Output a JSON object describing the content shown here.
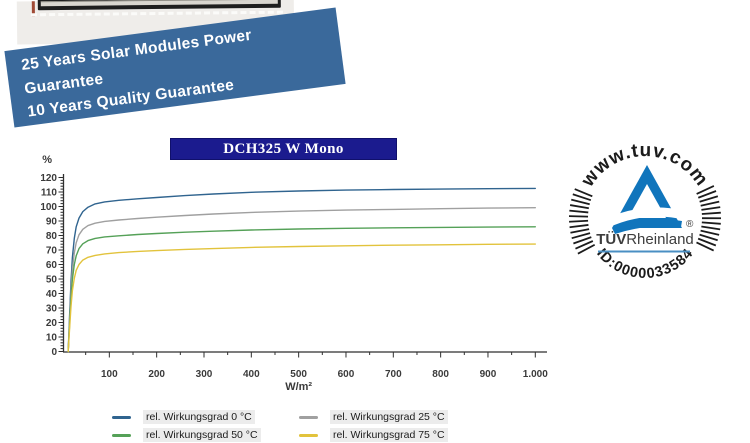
{
  "banner": {
    "line1": "25 Years Solar Modules Power",
    "line2": "Guarantee",
    "line3": "10 Years Quality Guarantee",
    "bg_color": "#3a699b"
  },
  "title": "DCH325 W Mono",
  "title_bg_color": "#1b1b8e",
  "tuv_badge": {
    "top_text": "www.tuv.com",
    "brand_bold": "TÜV",
    "brand_regular": "Rheinland",
    "registered": "®",
    "id_text": "ID:0000033584",
    "triangle_color": "#1075bc",
    "underline_color": "#4a8fc3"
  },
  "chart_data": {
    "type": "line",
    "title": "DCH325 W Mono",
    "xlabel": "W/m²",
    "ylabel": "%",
    "xlim": [
      0,
      1040
    ],
    "ylim": [
      0,
      120
    ],
    "grid": false,
    "legend_position": "bottom",
    "x_major_ticks": [
      100,
      200,
      300,
      400,
      500,
      600,
      700,
      800,
      900,
      1000
    ],
    "x_tick_labels": [
      "100",
      "200",
      "300",
      "400",
      "500",
      "600",
      "700",
      "800",
      "900",
      "1.000"
    ],
    "x_minor_step": 50,
    "y_major_step": 10,
    "y_minor_step": 2,
    "x": [
      13,
      16,
      19,
      22,
      26,
      30,
      36,
      44,
      55,
      70,
      90,
      120,
      160,
      200,
      260,
      320,
      400,
      500,
      600,
      700,
      800,
      900,
      1000
    ],
    "series": [
      {
        "name": "rel. Wirkungsgrad 0 °C",
        "color": "#30648f",
        "values": [
          0,
          25,
          48,
          65,
          78,
          86,
          92,
          96.5,
          99.5,
          101.8,
          103.2,
          104.3,
          105.3,
          106.2,
          107.5,
          108.6,
          109.8,
          110.7,
          111.3,
          111.7,
          112.0,
          112.3,
          112.5
        ]
      },
      {
        "name": "rel. Wirkungsgrad 25 °C",
        "color": "#a0a0a0",
        "values": [
          0,
          22,
          42,
          57,
          68,
          75,
          80.5,
          84.3,
          86.8,
          88.5,
          89.7,
          90.7,
          91.7,
          92.6,
          93.8,
          94.8,
          95.9,
          96.8,
          97.5,
          98.0,
          98.5,
          98.9,
          99.2
        ]
      },
      {
        "name": "rel. Wirkungsgrad 50 °C",
        "color": "#55a158",
        "values": [
          0,
          19,
          37,
          50,
          60,
          66,
          71,
          74.3,
          76.5,
          78,
          79,
          79.8,
          80.7,
          81.4,
          82.3,
          83,
          83.8,
          84.5,
          85,
          85.3,
          85.6,
          85.8,
          86
        ]
      },
      {
        "name": "rel. Wirkungsgrad 75 °C",
        "color": "#e2c33c",
        "values": [
          0,
          16,
          31,
          42,
          50.5,
          56,
          60,
          63,
          65,
          66.3,
          67.3,
          68.2,
          69,
          69.6,
          70.4,
          71,
          71.8,
          72.4,
          72.9,
          73.3,
          73.6,
          73.9,
          74.1
        ]
      }
    ]
  }
}
